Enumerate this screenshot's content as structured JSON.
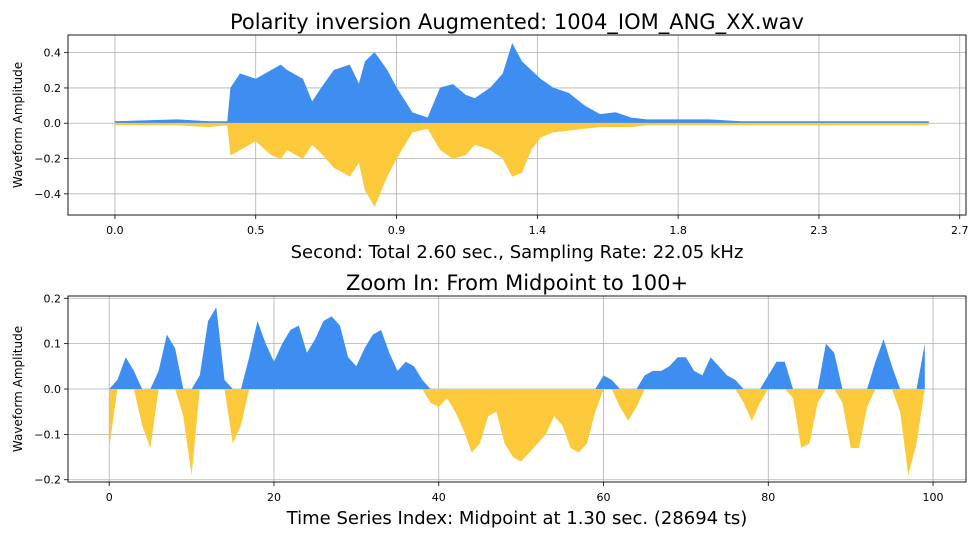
{
  "chart_data": [
    {
      "type": "area",
      "title": "Polarity inversion Augmented: 1004_IOM_ANG_XX.wav",
      "xlabel": "Second: Total 2.60 sec., Sampling Rate: 22.05 kHz",
      "ylabel": "Waveform Amplitude",
      "xlim": [
        -0.15,
        2.72
      ],
      "ylim": [
        -0.52,
        0.5
      ],
      "xticks": [
        0.0,
        0.45,
        0.9,
        1.35,
        1.8,
        2.25,
        2.7
      ],
      "xtick_labels": [
        "0.0",
        "0.5",
        "0.9",
        "1.4",
        "1.8",
        "2.3",
        "2.7"
      ],
      "yticks": [
        -0.4,
        -0.2,
        0.0,
        0.2,
        0.4
      ],
      "ytick_labels": [
        "−0.4",
        "−0.2",
        "0.0",
        "0.2",
        "0.4"
      ],
      "grid": true,
      "colors": {
        "positive": "#3d8ef0",
        "negative": "#fcc93b"
      },
      "envelope": {
        "t": [
          0.0,
          0.2,
          0.3,
          0.36,
          0.37,
          0.4,
          0.45,
          0.5,
          0.53,
          0.55,
          0.6,
          0.63,
          0.66,
          0.7,
          0.75,
          0.78,
          0.8,
          0.83,
          0.87,
          0.9,
          0.95,
          1.0,
          1.04,
          1.08,
          1.12,
          1.15,
          1.2,
          1.24,
          1.27,
          1.3,
          1.33,
          1.36,
          1.4,
          1.45,
          1.5,
          1.55,
          1.6,
          1.65,
          1.7,
          1.8,
          1.9,
          2.0,
          2.1,
          2.2,
          2.3,
          2.4,
          2.5,
          2.6
        ],
        "pos": [
          0.01,
          0.02,
          0.01,
          0.01,
          0.2,
          0.28,
          0.25,
          0.3,
          0.33,
          0.3,
          0.25,
          0.12,
          0.2,
          0.3,
          0.33,
          0.22,
          0.35,
          0.4,
          0.3,
          0.2,
          0.06,
          0.03,
          0.2,
          0.22,
          0.16,
          0.14,
          0.2,
          0.28,
          0.45,
          0.35,
          0.3,
          0.25,
          0.2,
          0.17,
          0.1,
          0.05,
          0.06,
          0.03,
          0.02,
          0.02,
          0.02,
          0.01,
          0.01,
          0.01,
          0.01,
          0.01,
          0.01,
          0.01
        ],
        "neg": [
          -0.01,
          -0.01,
          -0.02,
          -0.01,
          -0.18,
          -0.15,
          -0.1,
          -0.18,
          -0.2,
          -0.15,
          -0.2,
          -0.12,
          -0.17,
          -0.25,
          -0.3,
          -0.22,
          -0.38,
          -0.47,
          -0.3,
          -0.2,
          -0.05,
          -0.03,
          -0.15,
          -0.2,
          -0.18,
          -0.12,
          -0.15,
          -0.2,
          -0.3,
          -0.28,
          -0.15,
          -0.08,
          -0.05,
          -0.04,
          -0.03,
          -0.02,
          -0.02,
          -0.02,
          -0.01,
          -0.01,
          -0.01,
          -0.01,
          -0.01,
          -0.01,
          -0.01,
          -0.01,
          -0.01,
          -0.01
        ]
      }
    },
    {
      "type": "area",
      "title": "Zoom In: From Midpoint to 100+",
      "xlabel": "Time Series Index: Midpoint at 1.30 sec. (28694 ts)",
      "ylabel": "Waveform Amplitude",
      "xlim": [
        -5,
        104
      ],
      "ylim": [
        -0.205,
        0.205
      ],
      "xticks": [
        0,
        20,
        40,
        60,
        80,
        100
      ],
      "xtick_labels": [
        "0",
        "20",
        "40",
        "60",
        "80",
        "100"
      ],
      "yticks": [
        -0.2,
        -0.1,
        0.0,
        0.1,
        0.2
      ],
      "ytick_labels": [
        "−0.2",
        "−0.1",
        "0.0",
        "0.1",
        "0.2"
      ],
      "grid": true,
      "colors": {
        "positive": "#3d8ef0",
        "negative": "#fcc93b"
      },
      "x": [
        0,
        1,
        2,
        3,
        4,
        5,
        6,
        7,
        8,
        9,
        10,
        11,
        12,
        13,
        14,
        15,
        16,
        17,
        18,
        19,
        20,
        21,
        22,
        23,
        24,
        25,
        26,
        27,
        28,
        29,
        30,
        31,
        32,
        33,
        34,
        35,
        36,
        37,
        38,
        39,
        40,
        41,
        42,
        43,
        44,
        45,
        46,
        47,
        48,
        49,
        50,
        51,
        52,
        53,
        54,
        55,
        56,
        57,
        58,
        59,
        60,
        61,
        62,
        63,
        64,
        65,
        66,
        67,
        68,
        69,
        70,
        71,
        72,
        73,
        74,
        75,
        76,
        77,
        78,
        79,
        80,
        81,
        82,
        83,
        84,
        85,
        86,
        87,
        88,
        89,
        90,
        91,
        92,
        93,
        94,
        95,
        96,
        97,
        98,
        99
      ],
      "values": [
        -0.13,
        0.02,
        0.07,
        0.04,
        -0.08,
        -0.13,
        0.04,
        0.12,
        0.09,
        -0.06,
        -0.19,
        0.03,
        0.15,
        0.18,
        0.02,
        -0.12,
        -0.08,
        0.07,
        0.15,
        0.1,
        0.06,
        0.1,
        0.13,
        0.14,
        0.08,
        0.11,
        0.15,
        0.16,
        0.14,
        0.07,
        0.05,
        0.09,
        0.12,
        0.13,
        0.08,
        0.04,
        0.06,
        0.05,
        0.02,
        -0.03,
        -0.04,
        -0.02,
        -0.05,
        -0.09,
        -0.14,
        -0.12,
        -0.06,
        -0.05,
        -0.12,
        -0.15,
        -0.16,
        -0.14,
        -0.12,
        -0.1,
        -0.06,
        -0.08,
        -0.13,
        -0.14,
        -0.12,
        -0.05,
        0.03,
        0.02,
        -0.04,
        -0.07,
        -0.04,
        0.03,
        0.04,
        0.04,
        0.05,
        0.07,
        0.07,
        0.04,
        0.03,
        0.07,
        0.05,
        0.03,
        0.02,
        -0.03,
        -0.07,
        -0.03,
        0.03,
        0.06,
        0.06,
        -0.02,
        -0.13,
        -0.12,
        -0.03,
        0.1,
        0.08,
        -0.03,
        -0.13,
        -0.13,
        -0.04,
        0.06,
        0.11,
        0.05,
        -0.05,
        -0.19,
        -0.12,
        0.1
      ]
    }
  ]
}
